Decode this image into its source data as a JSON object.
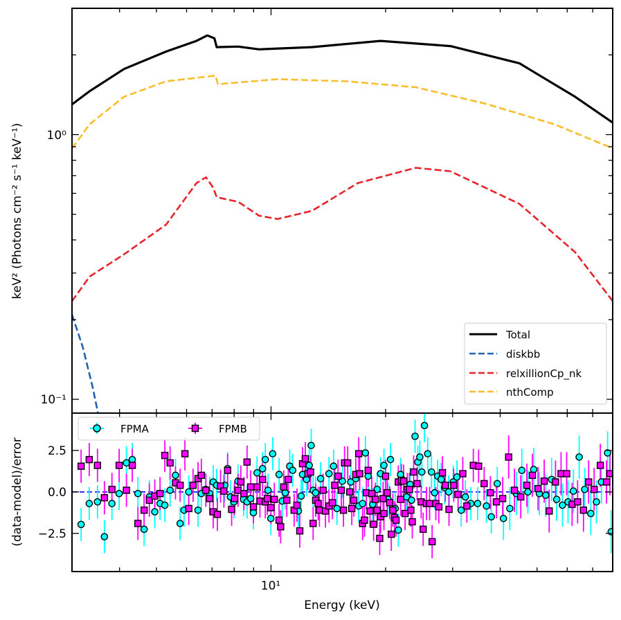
{
  "chart_data": [
    {
      "type": "line",
      "panel": "top",
      "xscale": "log",
      "yscale": "log",
      "xlim": [
        3,
        79
      ],
      "ylim": [
        0.0887,
        3.0
      ],
      "xlabel": "",
      "ylabel": "keV² (Photons cm⁻² s⁻¹ keV⁻¹)",
      "y_ticks": [
        {
          "value": 1.0,
          "label": "10⁰"
        },
        {
          "value": 0.1,
          "label": "10⁻¹"
        }
      ],
      "legend_placement": "lower-right",
      "series": [
        {
          "name": "Total",
          "color": "#000000",
          "style": "solid",
          "x": [
            3.0,
            3.34,
            4.11,
            5.3,
            6.37,
            6.8,
            7.1,
            7.2,
            8.2,
            9.3,
            12.8,
            19.4,
            29.6,
            44.9,
            62.9,
            79
          ],
          "y": [
            1.3,
            1.46,
            1.77,
            2.06,
            2.26,
            2.37,
            2.31,
            2.14,
            2.15,
            2.1,
            2.14,
            2.26,
            2.16,
            1.86,
            1.39,
            1.11
          ]
        },
        {
          "name": "diskbb",
          "color": "#1f63b0",
          "style": "dashed",
          "x": [
            3.0,
            3.2,
            3.4,
            3.55
          ],
          "y": [
            0.209,
            0.158,
            0.111,
            0.082
          ]
        },
        {
          "name": "relxillionCp_nk",
          "color": "#e5232b",
          "style": "dashed",
          "x": [
            3.0,
            3.34,
            4.11,
            5.3,
            6.37,
            6.75,
            7.05,
            7.2,
            8.2,
            9.3,
            10.4,
            12.8,
            16.9,
            24.0,
            29.6,
            44.9,
            62.9,
            79
          ],
          "y": [
            0.235,
            0.291,
            0.353,
            0.457,
            0.656,
            0.69,
            0.63,
            0.58,
            0.557,
            0.494,
            0.48,
            0.515,
            0.656,
            0.749,
            0.727,
            0.548,
            0.36,
            0.235
          ]
        },
        {
          "name": "nthComp",
          "color": "#fbbd2a",
          "style": "dashed",
          "x": [
            3.0,
            3.34,
            4.11,
            5.3,
            7.15,
            7.25,
            10.4,
            15.8,
            24.0,
            36.5,
            55.4,
            79
          ],
          "y": [
            0.887,
            1.095,
            1.39,
            1.59,
            1.67,
            1.55,
            1.62,
            1.59,
            1.51,
            1.31,
            1.095,
            0.887
          ]
        }
      ]
    },
    {
      "type": "scatter",
      "panel": "bottom",
      "xscale": "log",
      "xlim": [
        3,
        79
      ],
      "ylim": [
        -4.8,
        4.75
      ],
      "xlabel": "Energy (keV)",
      "ylabel": "(data-model)/error",
      "x_ticks": [
        {
          "value": 10,
          "label": "10¹"
        }
      ],
      "y_ticks": [
        {
          "value": 2.5,
          "label": "2.5"
        },
        {
          "value": 0.0,
          "label": "0.0"
        },
        {
          "value": -2.5,
          "label": "−2.5"
        }
      ],
      "reference_line": {
        "y": 0,
        "color": "#0000ff",
        "style": "dashed"
      },
      "legend_placement": "upper-left",
      "series": [
        {
          "name": "FPMA",
          "color": "#00ffff",
          "marker": "circle",
          "err": 1.0,
          "x": [
            3.17,
            3.33,
            3.5,
            3.65,
            3.82,
            3.99,
            4.17,
            4.32,
            4.47,
            4.64,
            4.79,
            4.95,
            5.11,
            5.26,
            5.43,
            5.61,
            5.77,
            5.91,
            6.08,
            6.43,
            6.56,
            6.74,
            6.9,
            7.05,
            7.2,
            7.56,
            7.69,
            7.82,
            7.99,
            8.19,
            8.47,
            8.65,
            8.84,
            8.99,
            9.19,
            9.5,
            9.66,
            9.82,
            9.99,
            10.1,
            10.5,
            10.7,
            10.9,
            11.2,
            11.4,
            11.8,
            12.0,
            12.1,
            12.4,
            12.6,
            12.75,
            12.9,
            13.1,
            13.5,
            14.2,
            14.6,
            14.9,
            15.4,
            16.2,
            16.7,
            17.0,
            17.4,
            17.7,
            18.0,
            18.5,
            19.0,
            19.4,
            19.8,
            20.3,
            20.6,
            21.2,
            21.6,
            21.9,
            22.7,
            23.2,
            23.4,
            23.9,
            24.3,
            24.6,
            24.9,
            25.3,
            25.8,
            26.4,
            26.9,
            27.4,
            28.0,
            28.6,
            29.3,
            30.1,
            30.8,
            31.6,
            32.4,
            33.5,
            34.9,
            36.8,
            37.9,
            39.3,
            40.8,
            42.4,
            44.1,
            45.6,
            47.3,
            49.0,
            50.7,
            52.7,
            54.6,
            56.3,
            58.3,
            60.3,
            62.3,
            64.5,
            66.7,
            69.2,
            71.6,
            73.8,
            76.6,
            78.3
          ],
          "y": [
            -1.96,
            -0.7,
            -0.6,
            -2.7,
            -0.7,
            -0.1,
            1.75,
            1.95,
            -0.1,
            -2.25,
            -0.3,
            -1.2,
            -0.7,
            -0.8,
            0.1,
            1.0,
            -1.9,
            -1.1,
            0.0,
            -1.1,
            -0.1,
            0.15,
            -0.1,
            0.6,
            0.4,
            0.4,
            1.4,
            -0.3,
            -0.6,
            0.65,
            -0.45,
            -0.6,
            -0.4,
            -1.25,
            1.15,
            1.4,
            1.95,
            0.1,
            -1.6,
            2.3,
            1.05,
            -0.55,
            -0.05,
            1.55,
            1.3,
            -1.15,
            -0.25,
            1.05,
            0.75,
            1.6,
            2.8,
            0.1,
            -0.05,
            0.8,
            1.1,
            1.55,
            -1.0,
            0.65,
            0.6,
            0.8,
            -0.85,
            -0.7,
            2.35,
            0.95,
            -0.75,
            0.15,
            1.1,
            1.6,
            -0.45,
            1.95,
            -1.0,
            -2.3,
            1.05,
            -0.3,
            0.45,
            -0.5,
            3.35,
            1.8,
            2.1,
            1.2,
            4.0,
            2.3,
            1.2,
            -0.05,
            0.95,
            0.75,
            0.25,
            0.0,
            0.6,
            0.9,
            -1.1,
            -0.3,
            -0.7,
            -0.7,
            -0.85,
            -1.5,
            0.5,
            -1.6,
            -1.0,
            -0.1,
            1.3,
            0.0,
            1.35,
            -0.1,
            -0.2,
            0.75,
            -0.45,
            -0.8,
            -0.6,
            0.05,
            2.1,
            0.15,
            -1.3,
            -0.6,
            0.6,
            2.35,
            -2.4
          ]
        },
        {
          "name": "FPMB",
          "color": "#ff00ff",
          "marker": "square",
          "err": 1.0,
          "x": [
            3.17,
            3.33,
            3.5,
            3.65,
            3.82,
            3.99,
            4.17,
            4.32,
            4.47,
            4.64,
            4.79,
            4.95,
            5.11,
            5.26,
            5.43,
            5.61,
            5.77,
            5.94,
            6.08,
            6.24,
            6.43,
            6.56,
            6.74,
            6.9,
            7.05,
            7.23,
            7.37,
            7.52,
            7.69,
            7.88,
            8.02,
            8.19,
            8.33,
            8.49,
            8.65,
            8.84,
            8.99,
            9.19,
            9.35,
            9.5,
            9.66,
            9.78,
            9.99,
            10.2,
            10.5,
            10.6,
            10.8,
            11.0,
            11.1,
            11.5,
            11.7,
            11.9,
            12.1,
            12.3,
            12.5,
            12.7,
            12.9,
            13.1,
            13.3,
            13.4,
            13.7,
            13.9,
            14.2,
            14.5,
            14.7,
            15.0,
            15.3,
            15.5,
            15.6,
            15.9,
            16.1,
            16.3,
            16.5,
            16.7,
            17.0,
            17.1,
            17.4,
            17.6,
            17.8,
            18.0,
            18.2,
            18.4,
            18.6,
            18.8,
            19.0,
            19.3,
            19.4,
            19.7,
            19.8,
            20.0,
            20.2,
            20.5,
            20.7,
            20.9,
            21.1,
            21.3,
            21.6,
            21.9,
            22.0,
            22.3,
            22.5,
            22.8,
            23.1,
            23.3,
            23.5,
            23.7,
            24.2,
            24.8,
            25.1,
            25.6,
            26.1,
            26.5,
            27.1,
            27.6,
            28.2,
            28.7,
            29.35,
            30.2,
            31.0,
            31.9,
            32.7,
            34.0,
            35.1,
            36.3,
            37.7,
            39.1,
            40.6,
            42.1,
            43.6,
            45.3,
            47.0,
            48.6,
            50.3,
            52.2,
            53.8,
            55.9,
            57.8,
            59.8,
            61.8,
            63.9,
            66.2,
            68.3,
            70.6,
            73.3,
            76.1,
            77.7
          ],
          "y": [
            1.55,
            1.95,
            1.6,
            -0.35,
            0.15,
            1.6,
            0.1,
            1.6,
            -1.9,
            -1.1,
            -0.5,
            -0.25,
            -0.1,
            2.2,
            1.75,
            0.55,
            0.4,
            2.3,
            -1.0,
            0.4,
            0.8,
            1.0,
            0.1,
            -0.4,
            -1.2,
            -1.35,
            0.35,
            0.05,
            1.3,
            -1.05,
            -0.4,
            0.1,
            0.6,
            -0.1,
            1.8,
            0.3,
            -0.9,
            0.3,
            -0.55,
            0.75,
            -0.6,
            -0.4,
            -0.95,
            -0.45,
            -1.7,
            -2.1,
            0.3,
            -0.5,
            0.75,
            -1.1,
            -0.8,
            -2.35,
            1.7,
            2.0,
            1.1,
            1.2,
            -1.9,
            -0.5,
            -0.7,
            -1.1,
            0.1,
            -1.15,
            -0.85,
            -0.65,
            0.4,
            0.95,
            0.1,
            -1.1,
            1.75,
            1.75,
            0.0,
            -1.0,
            -0.5,
            1.05,
            2.3,
            1.1,
            -1.9,
            -1.7,
            -0.05,
            1.3,
            -1.15,
            -0.1,
            -1.95,
            -0.45,
            -1.1,
            -2.8,
            -1.5,
            -0.4,
            -1.3,
            0.95,
            -0.05,
            -0.65,
            -2.55,
            -1.1,
            -1.55,
            -1.7,
            0.6,
            -0.45,
            0.7,
            0.65,
            -1.3,
            0.15,
            0.15,
            -1.1,
            -1.8,
            1.2,
            0.5,
            -0.6,
            -2.25,
            -0.7,
            -0.7,
            -3.0,
            -0.7,
            -0.9,
            1.15,
            0.4,
            -1.05,
            0.4,
            -0.15,
            1.1,
            -0.85,
            1.6,
            1.55,
            0.5,
            -0.05,
            -0.6,
            -0.4,
            2.1,
            0.1,
            -0.3,
            0.4,
            1.0,
            0.2,
            0.65,
            -1.15,
            0.6,
            1.1,
            1.1,
            -0.75,
            -0.6,
            -1.1,
            0.6,
            0.15,
            1.6,
            0.6,
            1.1
          ]
        }
      ]
    }
  ]
}
